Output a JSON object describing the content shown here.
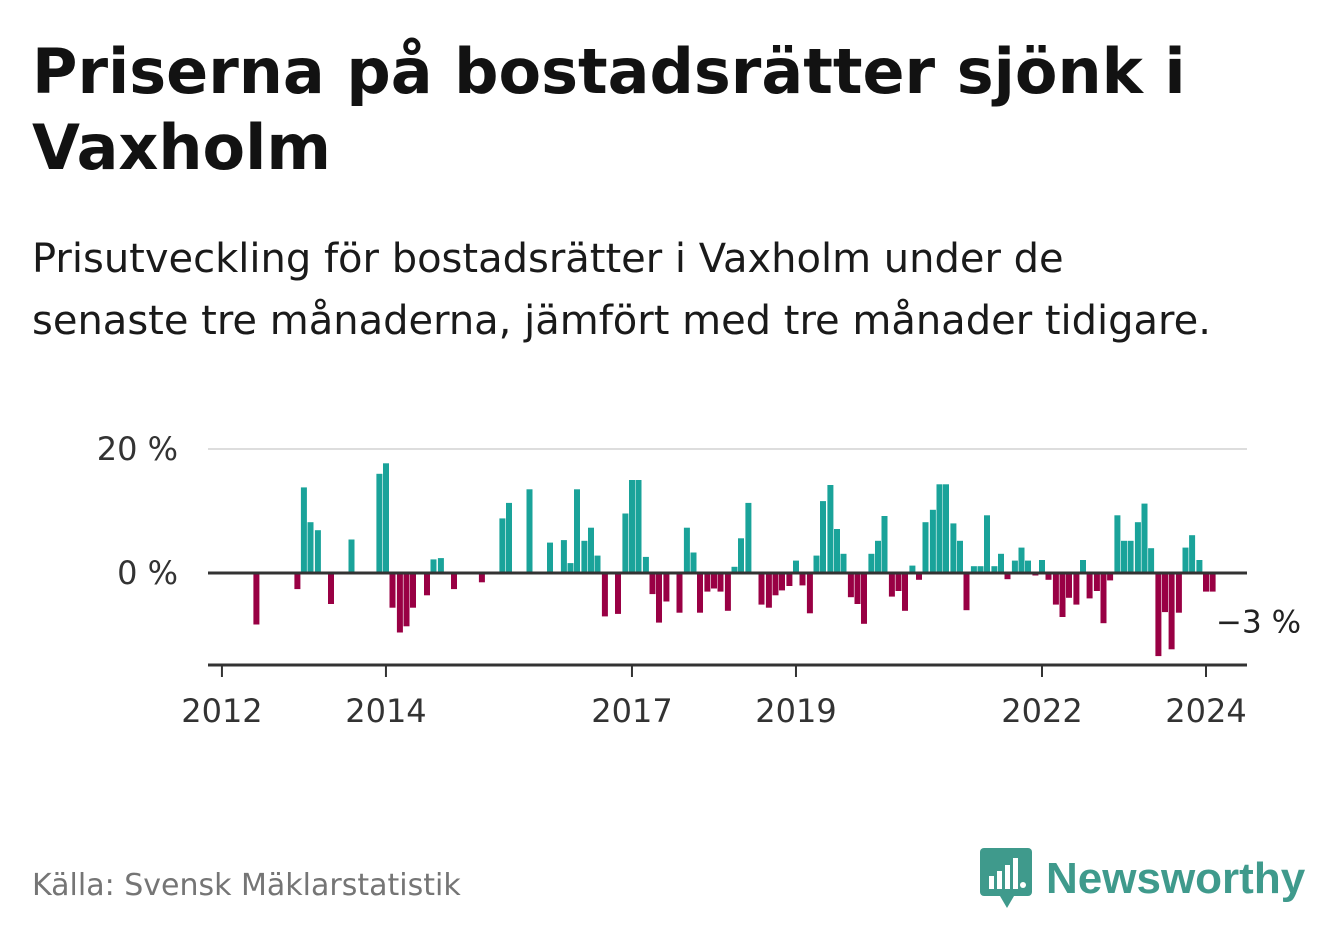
{
  "title": "Priserna på bostadsrätter sjönk i Vaxholm",
  "subtitle": "Prisutveckling för bostadsrätter i Vaxholm under de senaste tre månaderna, jämfört med tre månader tidigare.",
  "source": "Källa: Svensk Mäklarstatistik",
  "logo_text": "Newsworthy",
  "colors": {
    "positive": "#1aa39a",
    "negative": "#990044",
    "logo": "#3f9a8c"
  },
  "chart_data": {
    "type": "bar",
    "title": "Priserna på bostadsrätter sjönk i Vaxholm",
    "xlabel": "",
    "ylabel": "",
    "ylim": [
      -15,
      20
    ],
    "x_ticks": [
      {
        "label": "2012",
        "value": 2012.0
      },
      {
        "label": "2014",
        "value": 2014.0
      },
      {
        "label": "2017",
        "value": 2017.0
      },
      {
        "label": "2019",
        "value": 2019.0
      },
      {
        "label": "2022",
        "value": 2022.0
      },
      {
        "label": "2024",
        "value": 2024.0
      }
    ],
    "y_ticks": [
      {
        "label": "20 %",
        "value": 20
      },
      {
        "label": "0 %",
        "value": 0
      }
    ],
    "grid": true,
    "annotation": {
      "label": "−3 %",
      "x": 2024.08,
      "y": -3
    },
    "series": [
      {
        "name": "Prisutveckling",
        "x": [
          2012.42,
          2012.92,
          2013.0,
          2013.08,
          2013.17,
          2013.33,
          2013.58,
          2013.92,
          2014.0,
          2014.08,
          2014.17,
          2014.25,
          2014.33,
          2014.5,
          2014.58,
          2014.67,
          2014.83,
          2015.17,
          2015.42,
          2015.5,
          2015.75,
          2016.0,
          2016.17,
          2016.25,
          2016.33,
          2016.42,
          2016.5,
          2016.58,
          2016.67,
          2016.83,
          2016.92,
          2017.0,
          2017.08,
          2017.17,
          2017.25,
          2017.33,
          2017.42,
          2017.58,
          2017.67,
          2017.75,
          2017.83,
          2017.92,
          2018.0,
          2018.08,
          2018.17,
          2018.25,
          2018.33,
          2018.42,
          2018.58,
          2018.67,
          2018.75,
          2018.83,
          2018.92,
          2019.0,
          2019.08,
          2019.17,
          2019.25,
          2019.33,
          2019.42,
          2019.5,
          2019.58,
          2019.67,
          2019.75,
          2019.83,
          2019.92,
          2020.0,
          2020.08,
          2020.17,
          2020.25,
          2020.33,
          2020.42,
          2020.5,
          2020.58,
          2020.67,
          2020.75,
          2020.83,
          2020.92,
          2021.0,
          2021.08,
          2021.17,
          2021.25,
          2021.33,
          2021.42,
          2021.5,
          2021.58,
          2021.67,
          2021.75,
          2021.83,
          2021.92,
          2022.0,
          2022.08,
          2022.17,
          2022.25,
          2022.33,
          2022.42,
          2022.5,
          2022.58,
          2022.67,
          2022.75,
          2022.83,
          2022.92,
          2023.0,
          2023.08,
          2023.17,
          2023.25,
          2023.33,
          2023.42,
          2023.5,
          2023.58,
          2023.67,
          2023.75,
          2023.83,
          2023.92,
          2024.0,
          2024.08
        ],
        "values": [
          -8.3,
          -2.6,
          13.8,
          8.2,
          6.9,
          -5.0,
          5.4,
          16.0,
          17.7,
          -5.6,
          -9.6,
          -8.6,
          -5.6,
          -3.6,
          2.2,
          2.4,
          -2.6,
          -1.5,
          8.8,
          11.3,
          13.5,
          4.9,
          5.3,
          1.6,
          13.5,
          5.2,
          7.3,
          2.8,
          -7.0,
          -6.6,
          9.6,
          15.0,
          15.0,
          2.6,
          -3.4,
          -8.0,
          -4.6,
          -6.4,
          7.3,
          3.3,
          -6.4,
          -3.0,
          -2.5,
          -3.0,
          -6.1,
          1.0,
          5.6,
          11.3,
          -5.1,
          -5.6,
          -3.6,
          -2.8,
          -2.1,
          2.0,
          -2.0,
          -6.5,
          2.8,
          11.6,
          14.2,
          7.1,
          3.1,
          -3.9,
          -5.0,
          -8.2,
          3.1,
          5.2,
          9.2,
          -3.8,
          -2.9,
          -6.1,
          1.2,
          -1.1,
          8.2,
          10.2,
          14.3,
          14.3,
          8.0,
          5.2,
          -6.0,
          1.1,
          1.1,
          9.3,
          1.1,
          3.1,
          -1.0,
          2.0,
          4.1,
          2.0,
          -0.4,
          2.1,
          -1.1,
          -5.1,
          -7.1,
          -4.0,
          -5.1,
          2.1,
          -4.1,
          -2.9,
          -8.1,
          -1.2,
          9.3,
          5.2,
          5.2,
          8.2,
          11.2,
          4.0,
          -13.4,
          -6.3,
          -12.3,
          -6.4,
          4.1,
          6.1,
          2.1,
          -3.0,
          -3.0
        ]
      }
    ]
  }
}
